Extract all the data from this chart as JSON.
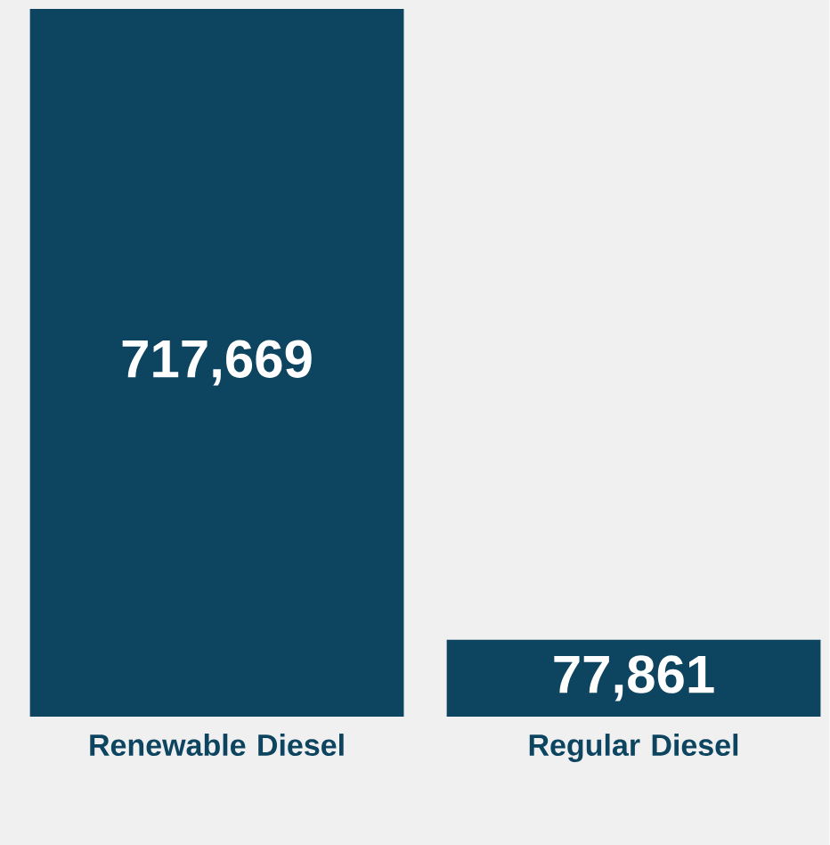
{
  "chart_data": {
    "type": "bar",
    "categories": [
      "Renewable Diesel",
      "Regular Diesel"
    ],
    "values": [
      717669,
      77861
    ],
    "value_labels": [
      "717,669",
      "77,861"
    ],
    "color": "#0d4561"
  }
}
